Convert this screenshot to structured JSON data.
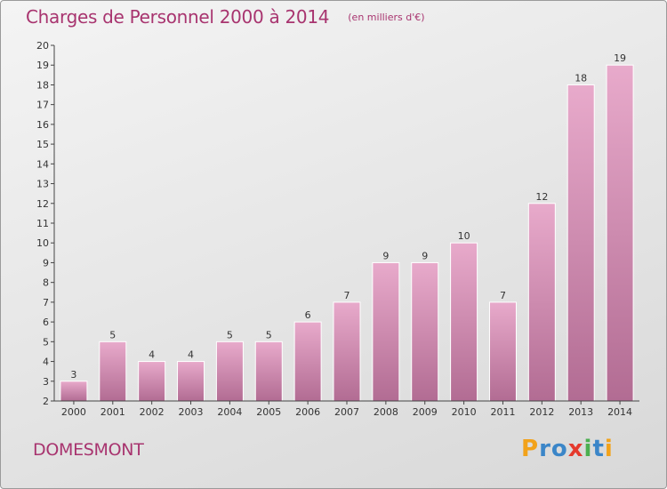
{
  "chart_data": {
    "type": "bar",
    "title": "Charges de Personnel 2000 à 2014",
    "subtitle": "(en milliers d'€)",
    "categories": [
      "2000",
      "2001",
      "2002",
      "2003",
      "2004",
      "2005",
      "2006",
      "2007",
      "2008",
      "2009",
      "2010",
      "2011",
      "2012",
      "2013",
      "2014"
    ],
    "values": [
      3,
      5,
      4,
      4,
      5,
      5,
      6,
      7,
      9,
      9,
      10,
      7,
      12,
      18,
      19
    ],
    "xlabel": "",
    "ylabel": "",
    "ylim": [
      2,
      20
    ],
    "yticks": [
      2,
      3,
      4,
      5,
      6,
      7,
      8,
      9,
      10,
      11,
      12,
      13,
      14,
      15,
      16,
      17,
      18,
      19,
      20
    ],
    "grid": false,
    "legend": "none",
    "bar_color_light": "#e8aacb",
    "bar_color_dark": "#b26c93",
    "data_labels": true
  },
  "commune": "DOMESMONT",
  "brand": {
    "letters": [
      "P",
      "r",
      "o",
      "x",
      "i",
      "t",
      "i"
    ],
    "colors": [
      "#f2a21a",
      "#3b86c8",
      "#3b86c8",
      "#e53a2d",
      "#4caf50",
      "#3b86c8",
      "#f2a21a"
    ]
  }
}
